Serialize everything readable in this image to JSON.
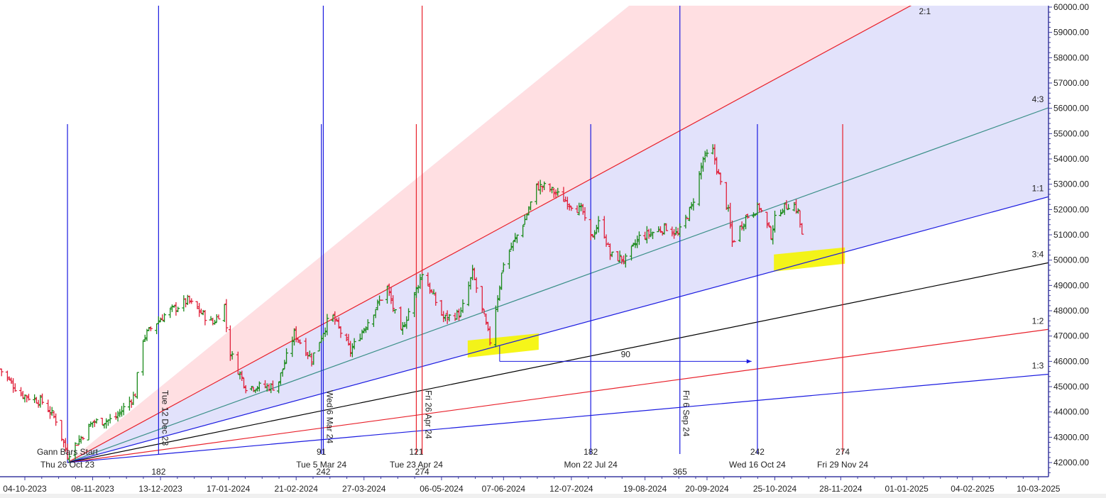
{
  "chart_data": {
    "type": "ohlc",
    "title": "",
    "xlabel": "",
    "ylabel": "",
    "ylim": [
      42000,
      60000
    ],
    "yticks": [
      "60000.00",
      "59000.00",
      "58000.00",
      "57000.00",
      "56000.00",
      "55000.00",
      "54000.00",
      "53000.00",
      "52000.00",
      "51000.00",
      "50000.00",
      "49000.00",
      "48000.00",
      "47000.00",
      "46000.00",
      "45000.00",
      "44000.00",
      "43000.00",
      "42000.00"
    ],
    "xticks": [
      "04-10-2023",
      "08-11-2023",
      "13-12-2023",
      "17-01-2024",
      "21-02-2024",
      "27-03-2024",
      "06-05-2024",
      "07-06-2024",
      "12-07-2024",
      "19-08-2024",
      "20-09-2024",
      "25-10-2024",
      "28-11-2024",
      "01-01-2025",
      "04-02-2025",
      "10-03-2025"
    ],
    "up_color": "#1a8a1a",
    "down_color": "#e0203a",
    "price_path": [
      [
        "2023-09-21",
        45700
      ],
      [
        "2023-10-02",
        44700
      ],
      [
        "2023-10-13",
        44400
      ],
      [
        "2023-10-20",
        43700
      ],
      [
        "2023-10-26",
        42300
      ],
      [
        "2023-11-08",
        43600
      ],
      [
        "2023-11-19",
        43700
      ],
      [
        "2023-11-30",
        44700
      ],
      [
        "2023-12-03",
        46800
      ],
      [
        "2023-12-09",
        47400
      ],
      [
        "2023-12-16",
        47900
      ],
      [
        "2023-12-27",
        48400
      ],
      [
        "2024-01-09",
        47500
      ],
      [
        "2024-01-15",
        48200
      ],
      [
        "2024-01-17",
        46500
      ],
      [
        "2024-01-26",
        45000
      ],
      [
        "2024-02-11",
        45000
      ],
      [
        "2024-02-20",
        47100
      ],
      [
        "2024-02-29",
        46100
      ],
      [
        "2024-03-10",
        47900
      ],
      [
        "2024-03-20",
        46400
      ],
      [
        "2024-04-08",
        48900
      ],
      [
        "2024-04-15",
        47100
      ],
      [
        "2024-04-26",
        49500
      ],
      [
        "2024-05-07",
        47700
      ],
      [
        "2024-05-16",
        47900
      ],
      [
        "2024-05-22",
        49500
      ],
      [
        "2024-05-31",
        46800
      ],
      [
        "2024-06-07",
        49900
      ],
      [
        "2024-06-18",
        51600
      ],
      [
        "2024-06-24",
        52900
      ],
      [
        "2024-06-29",
        52900
      ],
      [
        "2024-07-10",
        52300
      ],
      [
        "2024-07-18",
        51900
      ],
      [
        "2024-07-21",
        50700
      ],
      [
        "2024-07-27",
        51600
      ],
      [
        "2024-08-01",
        50200
      ],
      [
        "2024-08-09",
        50000
      ],
      [
        "2024-08-16",
        50900
      ],
      [
        "2024-08-30",
        51300
      ],
      [
        "2024-09-05",
        51000
      ],
      [
        "2024-09-12",
        52100
      ],
      [
        "2024-09-18",
        54000
      ],
      [
        "2024-09-23",
        54300
      ],
      [
        "2024-09-27",
        53000
      ],
      [
        "2024-10-01",
        51900
      ],
      [
        "2024-10-03",
        50700
      ],
      [
        "2024-10-10",
        51700
      ],
      [
        "2024-10-17",
        52100
      ],
      [
        "2024-10-23",
        51000
      ],
      [
        "2024-10-26",
        51900
      ],
      [
        "2024-11-03",
        52300
      ],
      [
        "2024-11-06",
        51900
      ],
      [
        "2024-11-10",
        50000
      ]
    ],
    "gann_fan": {
      "origin": {
        "date": "2023-10-26",
        "price": 42000
      },
      "lines": [
        {
          "label": "2:1",
          "points_per_day": 41.5,
          "color": "#e8202a"
        },
        {
          "label": "4:3",
          "points_per_day": 27.7,
          "color": "#3a8f88"
        },
        {
          "label": "1:1",
          "points_per_day": 20.75,
          "color": "#1a1ae0"
        },
        {
          "label": "3:4",
          "points_per_day": 15.6,
          "color": "#000000"
        },
        {
          "label": "1:2",
          "points_per_day": 10.4,
          "color": "#e8202a"
        },
        {
          "label": "1:3",
          "points_per_day": 6.9,
          "color": "#1a1ae0"
        }
      ],
      "steep_boundary_points_per_day": 62.3,
      "fill_upper": "#ffdfe2",
      "fill_lower": "#e2e2fb"
    },
    "gann_bars_label": "Gann Bars Start",
    "gann_start_label": "Thu 26 Oct 23",
    "time_markers": [
      {
        "date": "2023-10-26",
        "color": "#1a1ae0",
        "full": false,
        "count": "",
        "label": "",
        "rot_label": ""
      },
      {
        "date": "2023-12-12",
        "color": "#1a1ae0",
        "full": true,
        "count": "182",
        "count_low": true,
        "label": "",
        "rot_label": "Tue 12 Dec 23"
      },
      {
        "date": "2024-03-05",
        "color": "#1a1ae0",
        "full": false,
        "count": "91",
        "label": "Tue 5 Mar 24",
        "rot_label": ""
      },
      {
        "date": "2024-03-06",
        "color": "#1a1ae0",
        "full": true,
        "count": "242",
        "count_low": true,
        "label": "",
        "rot_label": "Wed 6 Mar 24"
      },
      {
        "date": "2024-04-23",
        "color": "#e8202a",
        "full": false,
        "count": "121",
        "label": "Tue 23 Apr 24",
        "rot_label": ""
      },
      {
        "date": "2024-04-26",
        "color": "#e8202a",
        "full": true,
        "count": "274",
        "count_low": true,
        "label": "",
        "rot_label": "Fri 26 Apr 24"
      },
      {
        "date": "2024-07-22",
        "color": "#1a1ae0",
        "full": false,
        "count": "182",
        "label": "Mon 22 Jul 24",
        "rot_label": ""
      },
      {
        "date": "2024-09-06",
        "color": "#1a1ae0",
        "full": true,
        "count": "365",
        "count_low": true,
        "label": "",
        "rot_label": "Fri 6 Sep 24"
      },
      {
        "date": "2024-10-16",
        "color": "#1a1ae0",
        "full": false,
        "count": "242",
        "label": "Wed 16 Oct 24",
        "rot_label": ""
      },
      {
        "date": "2024-11-29",
        "color": "#e8202a",
        "full": false,
        "count": "274",
        "label": "Fri 29 Nov 24",
        "rot_label": ""
      }
    ],
    "measure_arrow": {
      "from": "2024-06-05",
      "to": "2024-10-13",
      "price": 46000,
      "label": "90",
      "color": "#1a1ae0"
    },
    "highlights": [
      {
        "date": "2024-06-05",
        "price": 46600,
        "color": "#f5f500"
      },
      {
        "date": "2024-11-10",
        "price": 50000,
        "color": "#f5f500"
      }
    ]
  }
}
